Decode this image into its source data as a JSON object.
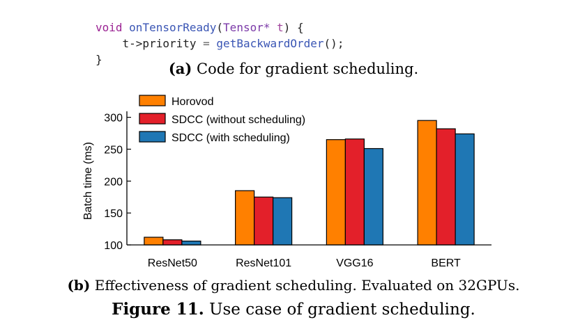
{
  "code": {
    "line1": {
      "keyword": "void",
      "function": "onTensorReady",
      "open_paren": "(",
      "type": "Tensor",
      "ptr": "*",
      "param": "t",
      "close": ") {"
    },
    "line2": {
      "lhs": "t->priority",
      "eq": "=",
      "call": "getBackwardOrder",
      "tail": "();"
    },
    "line3": "}"
  },
  "captions": {
    "a_label": "(a)",
    "a_text": "Code for gradient scheduling.",
    "b_label": "(b)",
    "b_text": "Effectiveness of gradient scheduling. Evaluated on 32GPUs.",
    "fig_label": "Figure 11.",
    "fig_text": "Use case of gradient scheduling."
  },
  "chart_data": {
    "type": "bar",
    "categories": [
      "ResNet50",
      "ResNet101",
      "VGG16",
      "BERT"
    ],
    "series": [
      {
        "name": "Horovod",
        "color": "#ff8000",
        "values": [
          112,
          185,
          265,
          295
        ]
      },
      {
        "name": "SDCC (without scheduling)",
        "color": "#e3202a",
        "values": [
          108,
          175,
          266,
          282
        ]
      },
      {
        "name": "SDCC (with scheduling)",
        "color": "#1f77b4",
        "values": [
          106,
          174,
          251,
          274
        ]
      }
    ],
    "ylabel": "Batch time (ms)",
    "ylim": [
      100,
      305
    ],
    "yticks": [
      100,
      150,
      200,
      250,
      300
    ],
    "legend_position": "top-left",
    "grid": false
  }
}
